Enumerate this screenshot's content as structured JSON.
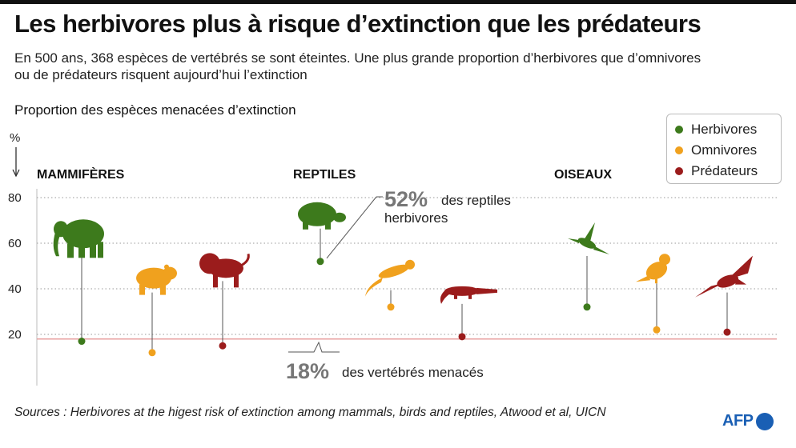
{
  "header": {
    "title": "Les herbivores plus à risque d’extinction que les prédateurs",
    "subtitle": "En 500 ans, 368 espèces de vertébrés se sont éteintes. Une plus grande proportion d’herbivores que d’omnivores ou de prédateurs risquent aujourd’hui l’extinction"
  },
  "colors": {
    "Herbivores": "#3d7a1c",
    "Omnivores": "#f0a11e",
    "Prédateurs": "#9b1c1c",
    "reference_line": "#e8a0a0"
  },
  "legend": [
    {
      "label": "Herbivores",
      "color": "#3d7a1c"
    },
    {
      "label": "Omnivores",
      "color": "#f0a11e"
    },
    {
      "label": "Prédateurs",
      "color": "#9b1c1c"
    }
  ],
  "chart_data": {
    "type": "scatter",
    "title": "Proportion des espèces menacées d’extinction",
    "ylabel": "%",
    "ylim": [
      0,
      85
    ],
    "yticks": [
      20,
      40,
      60,
      80
    ],
    "grid": "horizontal dotted",
    "legend_position": "top-right",
    "groups": [
      {
        "name": "MAMMIFÈRES",
        "points": [
          {
            "diet": "Herbivores",
            "value": 17,
            "icon": "elephant-icon",
            "icon_value": 62
          },
          {
            "diet": "Omnivores",
            "value": 12,
            "icon": "bear-icon",
            "icon_value": 44
          },
          {
            "diet": "Prédateurs",
            "value": 15,
            "icon": "lion-icon",
            "icon_value": 49
          }
        ]
      },
      {
        "name": "REPTILES",
        "points": [
          {
            "diet": "Herbivores",
            "value": 52,
            "icon": "tortoise-icon",
            "icon_value": 72
          },
          {
            "diet": "Omnivores",
            "value": 32,
            "icon": "lizard-icon",
            "icon_value": 45
          },
          {
            "diet": "Prédateurs",
            "value": 19,
            "icon": "crocodile-icon",
            "icon_value": 39
          }
        ]
      },
      {
        "name": "OISEAUX",
        "points": [
          {
            "diet": "Herbivores",
            "value": 32,
            "icon": "hummingbird-icon",
            "icon_value": 60
          },
          {
            "diet": "Omnivores",
            "value": 22,
            "icon": "songbird-icon",
            "icon_value": 48
          },
          {
            "diet": "Prédateurs",
            "value": 21,
            "icon": "eagle-icon",
            "icon_value": 44
          }
        ]
      }
    ],
    "reference": {
      "value": 18
    },
    "annotations": {
      "reptiles_value": "52%",
      "reptiles_text_1": "des reptiles",
      "reptiles_text_2": "herbivores",
      "reference_value": "18%",
      "reference_text": "des vertébrés menacés"
    }
  },
  "footer": {
    "source": "Sources : Herbivores at the higest risk of extinction among mammals, birds and reptiles, Atwood et al, UICN",
    "logo": "AFP"
  }
}
